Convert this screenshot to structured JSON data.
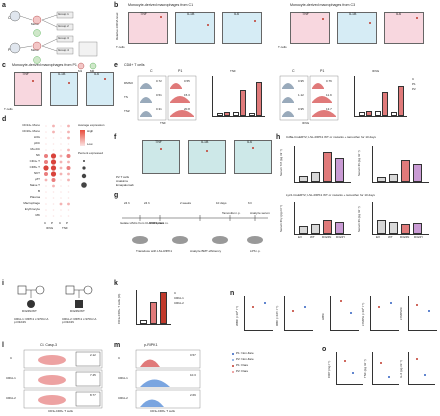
{
  "panels": {
    "a": {
      "letter": "a",
      "labels": [
        "C",
        "P",
        "Mono",
        "Mono",
        "Group 1",
        "Group 2",
        "Group 3",
        "Group 4",
        "M1",
        "M0"
      ]
    },
    "b": {
      "letter": "b",
      "title_left": "Monocyte-derived macrophages from C1",
      "title_right": "Monocyte-derived macrophages from C3",
      "genes": [
        "TNF",
        "IL1B",
        "IL6"
      ],
      "ylabel": "Relative mRNA level",
      "xlabel": "T cells",
      "x_left": "C1",
      "x_right": "C3"
    },
    "c": {
      "letter": "c",
      "title": "Monocyte-derived macrophages from P1",
      "genes": [
        "TNF",
        "IL1B",
        "IL6"
      ],
      "ylabel": "Relative mRNA level",
      "xlabel": "T cells"
    },
    "d": {
      "letter": "d",
      "rows": [
        "CD14+ Mono",
        "CD16+ Mono",
        "LDG",
        "pDC",
        "Mo-DC",
        "NK",
        "CD4+ T",
        "CD8+ T",
        "NKT",
        "γδT",
        "Naive T",
        "B",
        "Plasma",
        "Macrophage",
        "Erythrocyte",
        "MK"
      ],
      "cols": [
        "C",
        "P",
        "C",
        "P"
      ],
      "genes": [
        "IFNG",
        "TNF"
      ],
      "legend_expr": "Average expression",
      "legend_pct": "Percent expressed",
      "legend_high": "High",
      "legend_low": "Low"
    },
    "e": {
      "letter": "e",
      "title": "CD8+ T cells",
      "cond": [
        "DMSO",
        "TS",
        "TSZ"
      ],
      "cols": [
        "C",
        "P1"
      ],
      "genes": [
        "TNF",
        "IFNG"
      ],
      "values": {
        "C_DMSO": "0.72",
        "P1_DMSO": "0.55",
        "C_TS": "0.51",
        "P1_TS": "15.3",
        "C_TSZ": "0.31",
        "P1_TSZ": "20.8",
        "C2_DMSO": "0.95",
        "P2_DMSO": "0.76",
        "C2_TS": "1.12",
        "P2_TS": "11.9",
        "C2_TSZ": "0.95",
        "P2_TSZ": "13.7"
      },
      "ylabel_tnf": "% of CD3+CD8+ T cells",
      "ylabel_ifn": "% of CD3+CD8+ T cells",
      "legend": [
        "C",
        "P1",
        "P2"
      ]
    },
    "f": {
      "letter": "f",
      "genes": [
        "TNF",
        "IL1B",
        "IL6"
      ],
      "ylabel": "Relative mRNA level",
      "rows": [
        "P2 T cells",
        "Anakinra",
        "Emapalumab"
      ]
    },
    "g": {
      "letter": "g",
      "steps": [
        "Isolate HSCs from CHERT2 mice",
        "Transduce with LSL-RIPK1",
        "Transplant i.v.",
        "Analyze BMT efficiency",
        "Tamoxifen i.p.",
        "LPS i.p.",
        "Analyze serum"
      ],
      "times": [
        "24 h",
        "24 h",
        "2 weeks",
        "10 days",
        "6 h"
      ]
    },
    "h": {
      "letter": "h",
      "title_top": "Cd8a-CreERT2; LSL-RIPK1 WT or mutants + tamoxifen for 10 days",
      "title_bot": "Lyz2-CreERT2; LSL-RIPK1 WT or mutants + tamoxifen for 10 days",
      "ylabels": [
        "Serum Tnf (pg ml⁻¹)",
        "Serum Il6 (pg ml⁻¹)",
        "Serum Ifnγ (pg ml⁻¹)",
        "Serum Il6 (pg ml⁻¹)"
      ],
      "groups": [
        "EV",
        "WT",
        "D324N",
        "D324Y"
      ]
    },
    "i": {
      "letter": "i",
      "labels": [
        "D324N/WT",
        "D324N/WT",
        "CRIA-1: RIPK1 c.970G>A p.D324N",
        "CRIA-2: RIPK1 c.970G>A p.D324N"
      ]
    },
    "k": {
      "letter": "k",
      "ylabel": "CD3+CD8+ T cells (%)",
      "legend": [
        "C",
        "CRIA-1",
        "CRIA-2"
      ],
      "values": [
        0.8,
        4.2,
        6.0
      ],
      "ylim": [
        0,
        6
      ]
    },
    "l": {
      "letter": "l",
      "title": "Cl. Casp-3",
      "rows": [
        "C",
        "CRIA-1",
        "CRIA-2"
      ],
      "values": [
        "2.12",
        "7.45",
        "8.77"
      ],
      "xlabel": "CD3+CD8+ T cells"
    },
    "m": {
      "letter": "m",
      "title": "p-RIPK1",
      "rows": [
        "C",
        "CRIA-1",
        "CRIA-2"
      ],
      "values": [
        "0.57",
        "10.3",
        "2.69"
      ],
      "xlabel": "CD3+CD8+ T cells"
    },
    "n": {
      "letter": "n",
      "ylabels": [
        "WBC (×10⁹ l⁻¹)",
        "RBC (×10¹² l⁻¹)",
        "HB%",
        "LYMPH (×10⁹ l⁻¹)",
        "LYMPH%"
      ],
      "groups": [
        "EV",
        "WT",
        "D324N",
        "D324Y"
      ]
    },
    "o": {
      "letter": "o",
      "legend": [
        "P1: Non-flare",
        "P2: Non-flare",
        "P1: Flare",
        "P2: Flare"
      ],
      "ylabels": [
        "CRP (mg l⁻¹)",
        "TNF (pg ml⁻¹)",
        "IL-6 (pg ml⁻¹)"
      ]
    }
  },
  "colors": {
    "accent": "#c0392b",
    "pink_band": "#f8d7df",
    "blue_band": "#d6ecf5",
    "teal_band": "#cde8e8",
    "dot_red": "#c0392b",
    "dot_blue": "#3060c0"
  }
}
